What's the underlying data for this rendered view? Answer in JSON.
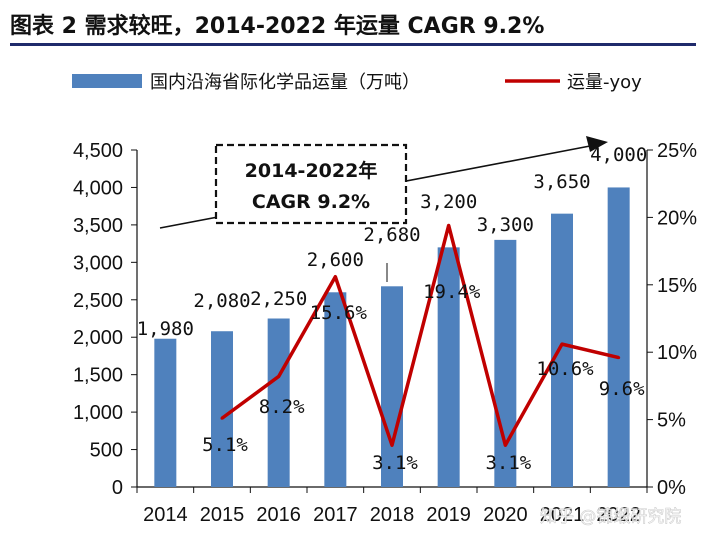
{
  "title": "图表 2 需求较旺，2014-2022 年运量 CAGR 9.2%",
  "watermark": "知乎 @锦缎研究院",
  "callout": {
    "line1": "2014-2022年",
    "line2": "CAGR 9.2%"
  },
  "colors": {
    "bar": "#4f81bd",
    "line": "#c00000",
    "title_rule": "#1f2a6b"
  },
  "chart_data": {
    "type": "bar+line",
    "categories": [
      "2014",
      "2015",
      "2016",
      "2017",
      "2018",
      "2019",
      "2020",
      "2021",
      "2022"
    ],
    "series": [
      {
        "name": "国内沿海省际化学品运量（万吨）",
        "type": "bar",
        "axis": "left",
        "values": [
          1980,
          2080,
          2250,
          2600,
          2680,
          3200,
          3300,
          3650,
          4000
        ],
        "labels": [
          "1,980",
          "2,080",
          "2,250",
          "2,600",
          "2,680",
          "3,200",
          "3,300",
          "3,650",
          "4,000"
        ]
      },
      {
        "name": "运量-yoy",
        "type": "line",
        "axis": "right",
        "values": [
          null,
          5.1,
          8.2,
          15.6,
          3.1,
          19.4,
          3.1,
          10.6,
          9.6
        ],
        "labels": [
          null,
          "5.1%",
          "8.2%",
          "15.6%",
          "3.1%",
          "19.4%",
          "3.1%",
          "10.6%",
          "9.6%"
        ]
      }
    ],
    "y_left": {
      "min": 0,
      "max": 4500,
      "step": 500,
      "tick_labels": [
        "0",
        "500",
        "1,000",
        "1,500",
        "2,000",
        "2,500",
        "3,000",
        "3,500",
        "4,000",
        "4,500"
      ]
    },
    "y_right": {
      "min": 0,
      "max": 25,
      "step": 5,
      "tick_labels": [
        "0%",
        "5%",
        "10%",
        "15%",
        "20%",
        "25%"
      ]
    },
    "grid": false,
    "legend_position": "top"
  }
}
